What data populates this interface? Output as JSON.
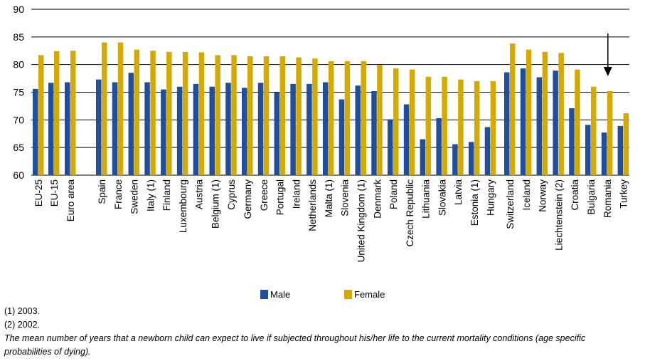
{
  "chart_data": {
    "type": "bar",
    "title": "",
    "xlabel": "",
    "ylabel": "",
    "ylim": [
      60,
      90
    ],
    "yticks": [
      60,
      65,
      70,
      75,
      80,
      85,
      90
    ],
    "grid": "horizontal",
    "legend_position": "bottom-center",
    "categories": [
      "EU-25",
      "EU-15",
      "Euro area",
      "Spain",
      "France",
      "Sweden",
      "Italy (1)",
      "Finland",
      "Luxembourg",
      "Austria",
      "Belgium (1)",
      "Cyprus",
      "Germany",
      "Greece",
      "Portugal",
      "Ireland",
      "Netherlands",
      "Malta (1)",
      "Slovenia",
      "United Kingdom (1)",
      "Denmark",
      "Poland",
      "Czech Republic",
      "Lithuania",
      "Slovakia",
      "Latvia",
      "Estonia (1)",
      "Hungary",
      "Switzerland",
      "Iceland",
      "Norway",
      "Liechtenstein (2)",
      "Croatia",
      "Bulgaria",
      "Romania",
      "Turkey"
    ],
    "group_breaks_after": [
      "Euro area",
      "Hungary"
    ],
    "series": [
      {
        "name": "Male",
        "color": "#1f4e9c",
        "values": [
          75.6,
          76.7,
          76.8,
          77.3,
          76.8,
          78.5,
          76.8,
          75.5,
          76.0,
          76.5,
          76.0,
          76.7,
          75.8,
          76.7,
          75.0,
          76.5,
          76.5,
          76.8,
          73.7,
          76.2,
          75.2,
          70.1,
          72.8,
          66.5,
          70.3,
          65.6,
          66.0,
          68.7,
          78.6,
          79.3,
          77.7,
          78.9,
          72.1,
          69.1,
          67.7,
          68.9
        ]
      },
      {
        "name": "Female",
        "color": "#d4aa00",
        "values": [
          81.7,
          82.4,
          82.5,
          84.0,
          84.0,
          82.7,
          82.5,
          82.3,
          82.3,
          82.2,
          81.7,
          81.7,
          81.5,
          81.5,
          81.5,
          81.3,
          81.1,
          80.6,
          80.6,
          80.6,
          79.9,
          79.3,
          79.1,
          77.8,
          77.8,
          77.3,
          77.0,
          77.0,
          83.8,
          82.7,
          82.3,
          82.1,
          79.1,
          76.0,
          75.2,
          71.2
        ]
      }
    ],
    "annotations": [
      {
        "type": "arrow",
        "points_to": "Romania",
        "direction": "down"
      }
    ]
  },
  "notes": {
    "note1": "(1) 2003.",
    "note2": "(2) 2002.",
    "description_line1": "The mean number of years that a newborn child can expect to live if subjected throughout his/her life to the current mortality conditions (age specific",
    "description_line2": "probabilities of dying)."
  }
}
